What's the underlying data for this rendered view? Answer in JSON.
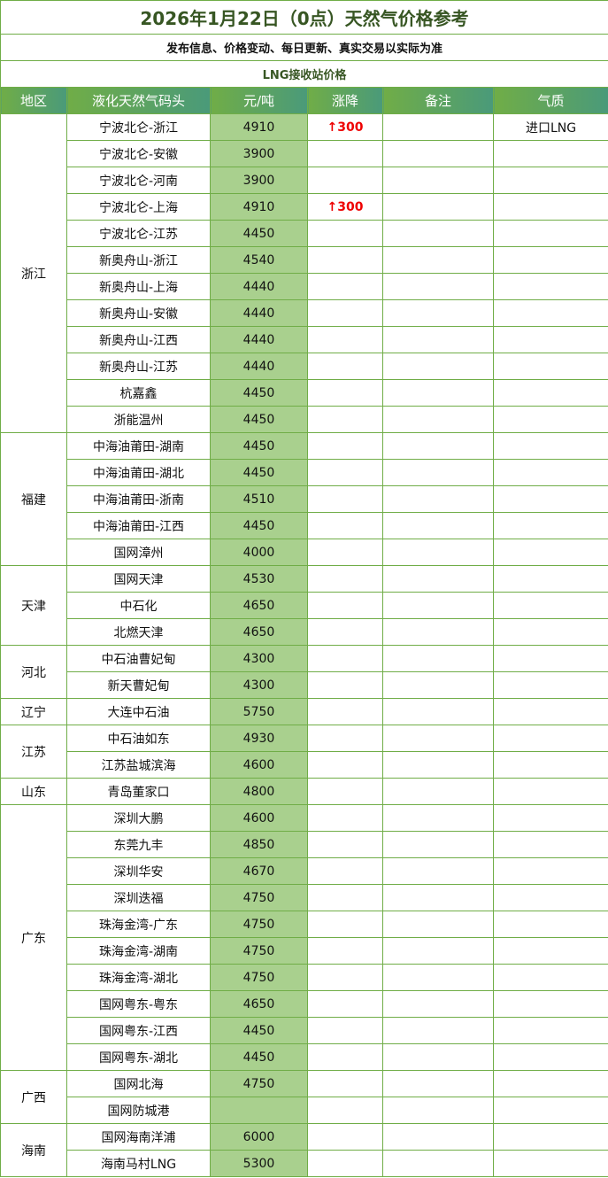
{
  "title": "2026年1月22日（0点）天然气价格参考",
  "subtitle": "发布信息、价格变动、每日更新、真实交易以实际为准",
  "section": "LNG接收站价格",
  "headers": [
    "地区",
    "液化天然气码头",
    "元/吨",
    "涨降",
    "备注",
    "气质"
  ],
  "accent": "#70ad47",
  "regions": [
    {
      "name": "浙江",
      "rows": [
        [
          "宁波北仑-浙江",
          "4910",
          "↑300",
          "",
          "进口LNG"
        ],
        [
          "宁波北仑-安徽",
          "3900",
          "",
          "",
          ""
        ],
        [
          "宁波北仑-河南",
          "3900",
          "",
          "",
          ""
        ],
        [
          "宁波北仑-上海",
          "4910",
          "↑300",
          "",
          ""
        ],
        [
          "宁波北仑-江苏",
          "4450",
          "",
          "",
          ""
        ],
        [
          "新奥舟山-浙江",
          "4540",
          "",
          "",
          ""
        ],
        [
          "新奥舟山-上海",
          "4440",
          "",
          "",
          ""
        ],
        [
          "新奥舟山-安徽",
          "4440",
          "",
          "",
          ""
        ],
        [
          "新奥舟山-江西",
          "4440",
          "",
          "",
          ""
        ],
        [
          "新奥舟山-江苏",
          "4440",
          "",
          "",
          ""
        ],
        [
          "杭嘉鑫",
          "4450",
          "",
          "",
          ""
        ],
        [
          "浙能温州",
          "4450",
          "",
          "",
          ""
        ]
      ]
    },
    {
      "name": "福建",
      "rows": [
        [
          "中海油莆田-湖南",
          "4450",
          "",
          "",
          ""
        ],
        [
          "中海油莆田-湖北",
          "4450",
          "",
          "",
          ""
        ],
        [
          "中海油莆田-浙南",
          "4510",
          "",
          "",
          ""
        ],
        [
          "中海油莆田-江西",
          "4450",
          "",
          "",
          ""
        ],
        [
          "国网漳州",
          "4000",
          "",
          "",
          ""
        ]
      ]
    },
    {
      "name": "天津",
      "rows": [
        [
          "国网天津",
          "4530",
          "",
          "",
          ""
        ],
        [
          "中石化",
          "4650",
          "",
          "",
          ""
        ],
        [
          "北燃天津",
          "4650",
          "",
          "",
          ""
        ]
      ]
    },
    {
      "name": "河北",
      "rows": [
        [
          "中石油曹妃甸",
          "4300",
          "",
          "",
          ""
        ],
        [
          "新天曹妃甸",
          "4300",
          "",
          "",
          ""
        ]
      ]
    },
    {
      "name": "辽宁",
      "rows": [
        [
          "大连中石油",
          "5750",
          "",
          "",
          ""
        ]
      ]
    },
    {
      "name": "江苏",
      "rows": [
        [
          "中石油如东",
          "4930",
          "",
          "",
          ""
        ],
        [
          "江苏盐城滨海",
          "4600",
          "",
          "",
          ""
        ]
      ]
    },
    {
      "name": "山东",
      "rows": [
        [
          "青岛董家口",
          "4800",
          "",
          "",
          ""
        ]
      ]
    },
    {
      "name": "广东",
      "rows": [
        [
          "深圳大鹏",
          "4600",
          "",
          "",
          ""
        ],
        [
          "东莞九丰",
          "4850",
          "",
          "",
          ""
        ],
        [
          "深圳华安",
          "4670",
          "",
          "",
          ""
        ],
        [
          "深圳迭福",
          "4750",
          "",
          "",
          ""
        ],
        [
          "珠海金湾-广东",
          "4750",
          "",
          "",
          ""
        ],
        [
          "珠海金湾-湖南",
          "4750",
          "",
          "",
          ""
        ],
        [
          "珠海金湾-湖北",
          "4750",
          "",
          "",
          ""
        ],
        [
          "国网粤东-粤东",
          "4650",
          "",
          "",
          ""
        ],
        [
          "国网粤东-江西",
          "4450",
          "",
          "",
          ""
        ],
        [
          "国网粤东-湖北",
          "4450",
          "",
          "",
          ""
        ]
      ]
    },
    {
      "name": "广西",
      "rows": [
        [
          "国网北海",
          "4750",
          "",
          "",
          ""
        ],
        [
          "国网防城港",
          "",
          "",
          "",
          ""
        ]
      ]
    },
    {
      "name": "海南",
      "rows": [
        [
          "国网海南洋浦",
          "6000",
          "",
          "",
          ""
        ],
        [
          "海南马村LNG",
          "5300",
          "",
          "",
          ""
        ]
      ]
    }
  ]
}
